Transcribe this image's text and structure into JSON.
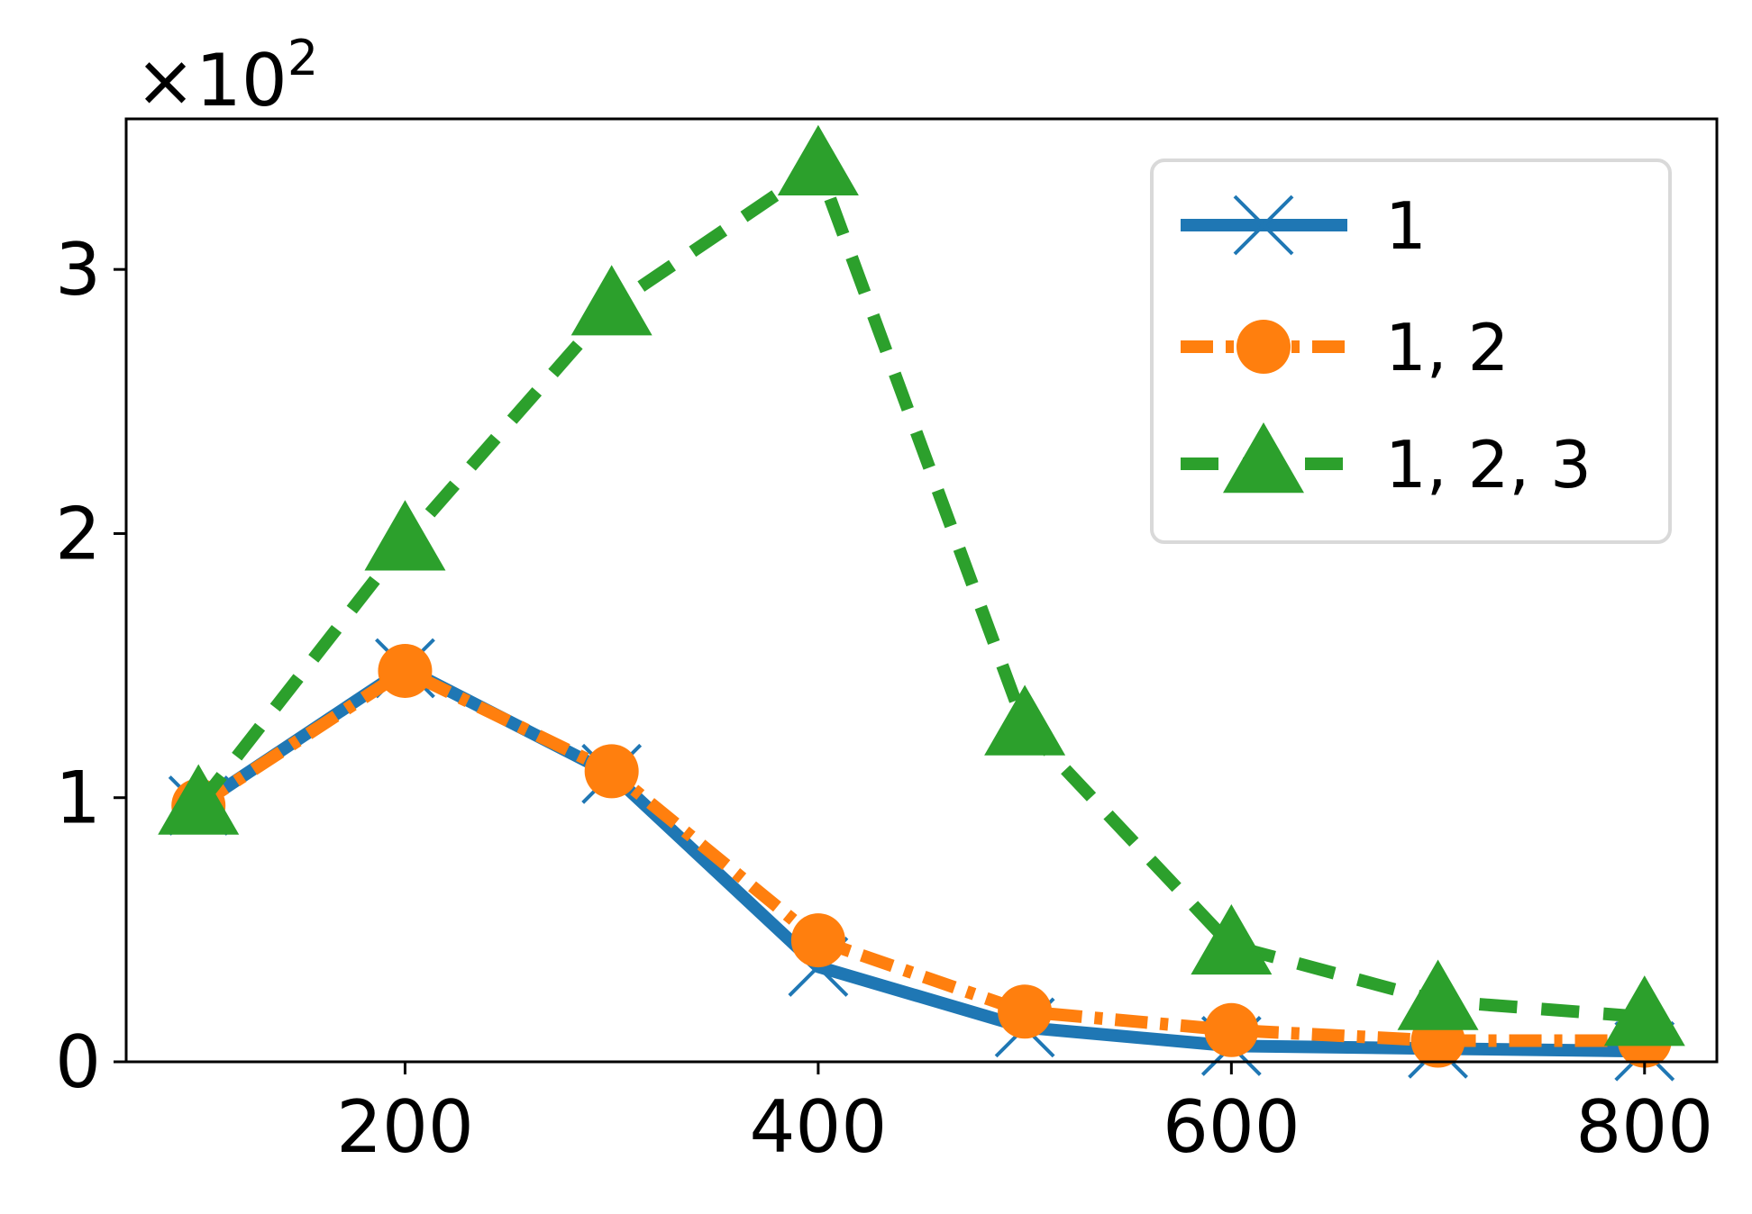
{
  "chart_data": {
    "type": "line",
    "title": "",
    "xlabel": "",
    "ylabel": "",
    "y_offset_label": "×10",
    "y_offset_exponent": "2",
    "x": [
      100,
      200,
      300,
      400,
      500,
      600,
      700,
      800
    ],
    "xlim": [
      65,
      835
    ],
    "ylim": [
      0,
      3.57
    ],
    "x_ticks": [
      200,
      400,
      600,
      800
    ],
    "x_tick_labels": [
      "200",
      "400",
      "600",
      "800"
    ],
    "y_ticks": [
      0,
      1,
      2,
      3
    ],
    "y_tick_labels": [
      "0",
      "1",
      "2",
      "3"
    ],
    "grid": false,
    "legend_position": "top-right",
    "series": [
      {
        "name": "1",
        "values": [
          0.97,
          1.49,
          1.09,
          0.36,
          0.13,
          0.06,
          0.05,
          0.04
        ],
        "color": "#1f77b4",
        "line_style": "solid",
        "marker": "x"
      },
      {
        "name": "1, 2",
        "values": [
          0.97,
          1.48,
          1.1,
          0.46,
          0.19,
          0.12,
          0.08,
          0.08
        ],
        "color": "#ff7f0e",
        "line_style": "dashdot",
        "marker": "circle"
      },
      {
        "name": "1, 2, 3",
        "values": [
          0.97,
          1.97,
          2.86,
          3.39,
          1.27,
          0.44,
          0.23,
          0.17
        ],
        "color": "#2ca02c",
        "line_style": "dashed",
        "marker": "triangle"
      }
    ]
  }
}
